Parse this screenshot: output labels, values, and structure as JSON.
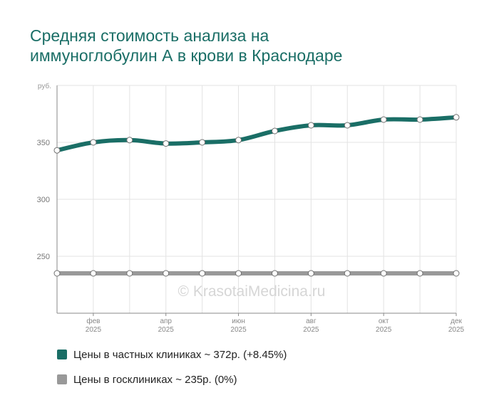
{
  "title": {
    "line1": "Средняя стоимость анализа на",
    "line2": "иммуноглобулин А в крови в Краснодаре"
  },
  "watermark": "© KrasotaiMedicina.ru",
  "chart_data": {
    "type": "line",
    "y_unit": "руб.",
    "ylim": [
      200,
      400
    ],
    "y_ticks": [
      250,
      300,
      350
    ],
    "x_count": 12,
    "x_ticks": [
      {
        "index": 1,
        "month": "фев",
        "year": "2025"
      },
      {
        "index": 3,
        "month": "апр",
        "year": "2025"
      },
      {
        "index": 5,
        "month": "июн",
        "year": "2025"
      },
      {
        "index": 7,
        "month": "авг",
        "year": "2025"
      },
      {
        "index": 9,
        "month": "окт",
        "year": "2025"
      },
      {
        "index": 11,
        "month": "дек",
        "year": "2025"
      }
    ],
    "series": [
      {
        "name": "Цены в частных клиниках ~ 372р. (+8.45%)",
        "color": "#1a6e66",
        "values": [
          343,
          350,
          352,
          349,
          350,
          352,
          360,
          365,
          365,
          370,
          370,
          372
        ]
      },
      {
        "name": "Цены в госклиниках ~ 235р. (0%)",
        "color": "#999999",
        "values": [
          235,
          235,
          235,
          235,
          235,
          235,
          235,
          235,
          235,
          235,
          235,
          235
        ]
      }
    ]
  }
}
